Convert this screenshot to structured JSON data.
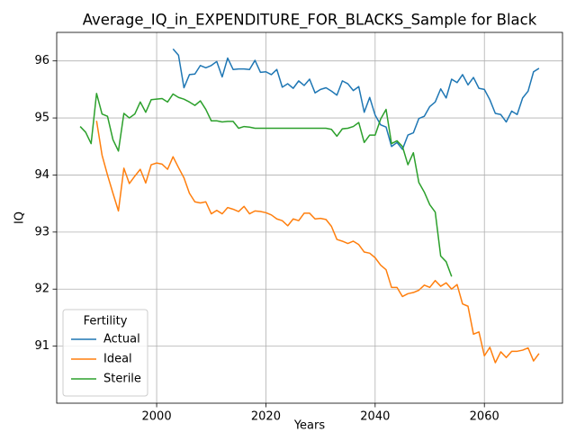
{
  "chart_data": {
    "type": "line",
    "title": "Average_IQ_in_EXPENDITURE_FOR_BLACKS_Sample for Black",
    "x_label": "Years",
    "y_label": "IQ",
    "legend_title": "Fertility",
    "legend_position": "lower left",
    "grid": true,
    "xlim": [
      1981.7,
      2074.3
    ],
    "ylim": [
      90.0,
      96.5
    ],
    "xticks": [
      2000,
      2020,
      2040,
      2060
    ],
    "yticks": [
      91,
      92,
      93,
      94,
      95,
      96
    ],
    "x": [
      1986,
      1987,
      1988,
      1989,
      1990,
      1991,
      1992,
      1993,
      1994,
      1995,
      1996,
      1997,
      1998,
      1999,
      2000,
      2001,
      2002,
      2003,
      2004,
      2005,
      2006,
      2007,
      2008,
      2009,
      2010,
      2011,
      2012,
      2013,
      2014,
      2015,
      2016,
      2017,
      2018,
      2019,
      2020,
      2021,
      2022,
      2023,
      2024,
      2025,
      2026,
      2027,
      2028,
      2029,
      2030,
      2031,
      2032,
      2033,
      2034,
      2035,
      2036,
      2037,
      2038,
      2039,
      2040,
      2041,
      2042,
      2043,
      2044,
      2045,
      2046,
      2047,
      2048,
      2049,
      2050,
      2051,
      2052,
      2053,
      2054,
      2055,
      2056,
      2057,
      2058,
      2059,
      2060,
      2061,
      2062,
      2063,
      2064,
      2065,
      2066,
      2067,
      2068,
      2069,
      2070
    ],
    "series": [
      {
        "name": "Actual",
        "color": "#1f77b4",
        "values": [
          null,
          null,
          null,
          null,
          null,
          null,
          null,
          null,
          null,
          null,
          null,
          null,
          null,
          null,
          null,
          null,
          null,
          96.21,
          96.1,
          95.53,
          95.76,
          95.77,
          95.92,
          95.88,
          95.92,
          95.99,
          95.72,
          96.05,
          95.85,
          95.86,
          95.86,
          95.85,
          96.01,
          95.8,
          95.81,
          95.76,
          95.85,
          95.54,
          95.6,
          95.52,
          95.65,
          95.57,
          95.68,
          95.44,
          95.5,
          95.53,
          95.47,
          95.4,
          95.65,
          95.6,
          95.48,
          95.55,
          95.1,
          95.36,
          95.05,
          94.88,
          94.84,
          94.5,
          94.57,
          94.45,
          94.7,
          94.74,
          94.99,
          95.03,
          95.2,
          95.28,
          95.51,
          95.35,
          95.68,
          95.62,
          95.76,
          95.58,
          95.71,
          95.52,
          95.5,
          95.32,
          95.08,
          95.06,
          94.93,
          95.12,
          95.06,
          95.35,
          95.47,
          95.81,
          95.87
        ]
      },
      {
        "name": "Ideal",
        "color": "#ff7f0e",
        "values": [
          null,
          null,
          null,
          94.95,
          94.35,
          94.0,
          93.68,
          93.37,
          94.12,
          93.85,
          93.98,
          94.1,
          93.86,
          94.18,
          94.21,
          94.19,
          94.1,
          94.32,
          94.13,
          93.95,
          93.68,
          93.53,
          93.51,
          93.53,
          93.32,
          93.38,
          93.32,
          93.43,
          93.4,
          93.36,
          93.45,
          93.32,
          93.37,
          93.36,
          93.34,
          93.3,
          93.23,
          93.2,
          93.11,
          93.23,
          93.2,
          93.33,
          93.33,
          93.23,
          93.24,
          93.22,
          93.1,
          92.87,
          92.84,
          92.8,
          92.84,
          92.78,
          92.65,
          92.63,
          92.55,
          92.42,
          92.34,
          92.03,
          92.03,
          91.87,
          91.92,
          91.94,
          91.98,
          92.07,
          92.03,
          92.15,
          92.05,
          92.11,
          92.0,
          92.08,
          91.74,
          91.7,
          91.21,
          91.25,
          90.83,
          90.98,
          90.71,
          90.9,
          90.8,
          90.91,
          90.91,
          90.93,
          90.97,
          90.74,
          90.87
        ]
      },
      {
        "name": "Sterile",
        "color": "#2ca02c",
        "values": [
          94.85,
          94.75,
          94.55,
          95.43,
          95.07,
          95.03,
          94.62,
          94.42,
          95.08,
          95.0,
          95.07,
          95.28,
          95.1,
          95.32,
          95.33,
          95.34,
          95.28,
          95.42,
          95.36,
          95.33,
          95.28,
          95.22,
          95.3,
          95.15,
          94.95,
          94.95,
          94.93,
          94.94,
          94.94,
          94.82,
          94.85,
          94.84,
          94.82,
          94.82,
          94.82,
          94.82,
          94.82,
          94.82,
          94.82,
          94.82,
          94.82,
          94.82,
          94.82,
          94.82,
          94.82,
          94.82,
          94.8,
          94.68,
          94.81,
          94.82,
          94.85,
          94.92,
          94.57,
          94.7,
          94.7,
          94.98,
          95.15,
          94.55,
          94.6,
          94.5,
          94.18,
          94.39,
          93.87,
          93.7,
          93.48,
          93.35,
          92.58,
          92.48,
          92.22,
          null,
          null,
          null,
          null,
          null,
          null,
          null,
          null,
          null,
          null,
          null,
          null,
          null,
          null,
          null,
          null
        ]
      }
    ]
  }
}
